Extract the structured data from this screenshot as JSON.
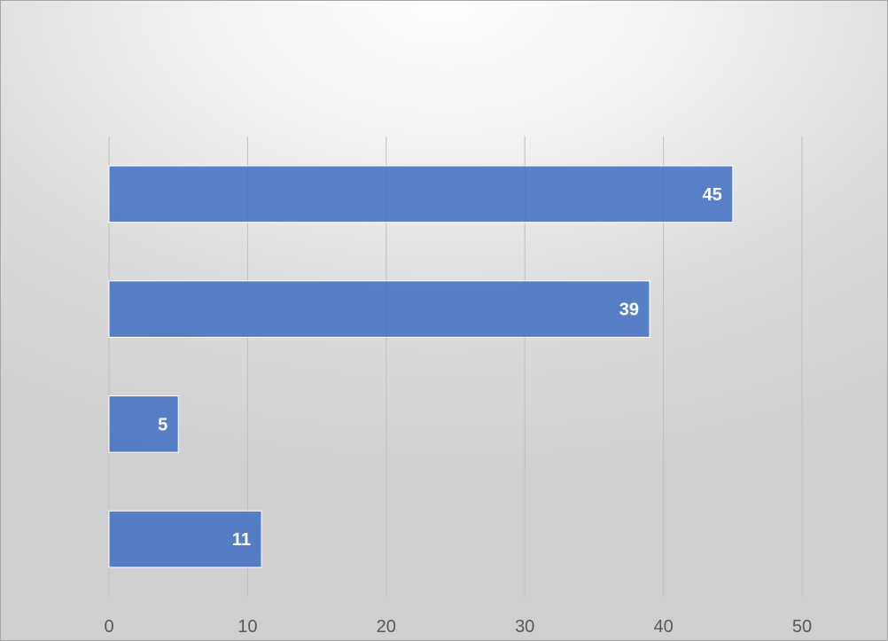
{
  "chart_data": {
    "type": "bar",
    "orientation": "horizontal",
    "categories": [
      "",
      "",
      "",
      ""
    ],
    "values": [
      45,
      39,
      5,
      11
    ],
    "data_labels": [
      "45",
      "39",
      "5",
      "11"
    ],
    "xlim": [
      0,
      50
    ],
    "x_ticks": [
      0,
      10,
      20,
      30,
      40,
      50
    ],
    "x_tick_labels": [
      "0",
      "10",
      "20",
      "30",
      "40",
      "50"
    ],
    "gridlines": "vertical",
    "legend": "none",
    "title": "",
    "xlabel": "",
    "ylabel": "",
    "colors": {
      "bar_fill": "#4472c4",
      "bar_border": "#ffffff",
      "gridline": "#bfbfbf",
      "tick_text": "#595959",
      "data_label_text": "#ffffff"
    }
  }
}
